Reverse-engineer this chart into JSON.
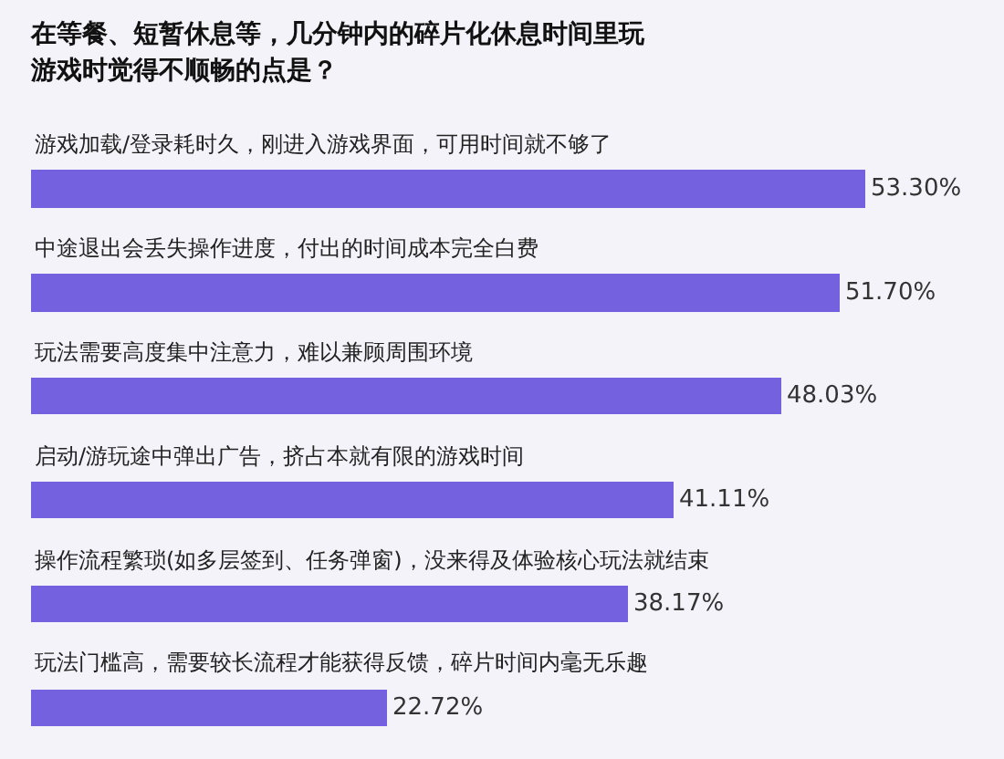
{
  "chart_data": {
    "type": "bar",
    "orientation": "horizontal",
    "title": "在等餐、短暂休息等，几分钟内的碎片化休息时间里玩游戏时觉得不顺畅的点是？",
    "categories": [
      "游戏加载/登录耗时久，刚进入游戏界面，可用时间就不够了",
      "中途退出会丢失操作进度，付出的时间成本完全白费",
      "玩法需要高度集中注意力，难以兼顾周围环境",
      "启动/游玩途中弹出广告，挤占本就有限的游戏时间",
      "操作流程繁琐(如多层签到、任务弹窗)，没来得及体验核心玩法就结束",
      "玩法门槛高，需要较长流程才能获得反馈，碎片时间内毫无乐趣"
    ],
    "values": [
      53.3,
      51.7,
      48.03,
      41.11,
      38.17,
      22.72
    ],
    "value_labels": [
      "53.30%",
      "51.70%",
      "48.03%",
      "41.11%",
      "38.17%",
      "22.72%"
    ],
    "color": "#7461e0"
  }
}
